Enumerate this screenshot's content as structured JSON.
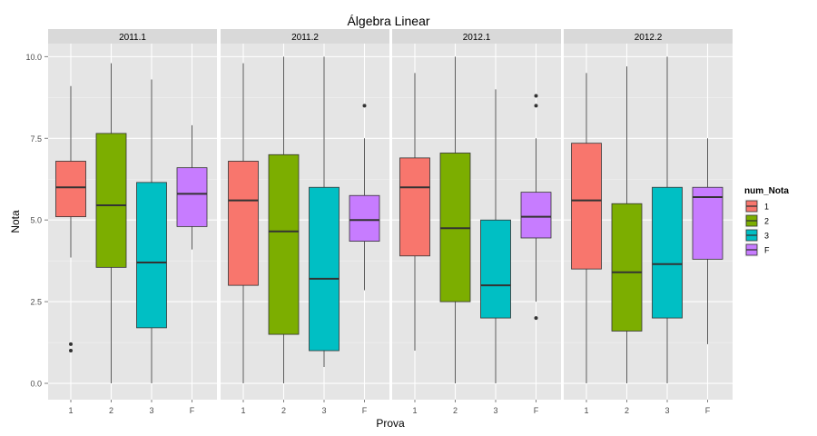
{
  "chart_data": {
    "type": "boxplot",
    "title": "Álgebra Linear",
    "xlabel": "Prova",
    "ylabel": "Nota",
    "ylim": [
      -0.5,
      10.4
    ],
    "yticks": [
      0.0,
      2.5,
      5.0,
      7.5,
      10.0
    ],
    "ytick_labels": [
      "0.0",
      "2.5",
      "5.0",
      "7.5",
      "10.0"
    ],
    "categories": [
      "1",
      "2",
      "3",
      "F"
    ],
    "grid": true,
    "legend": {
      "title": "num_Nota",
      "position": "right",
      "entries": [
        {
          "label": "1",
          "color": "#F8766D"
        },
        {
          "label": "2",
          "color": "#7CAE00"
        },
        {
          "label": "3",
          "color": "#00BFC4"
        },
        {
          "label": "F",
          "color": "#C77CFF"
        }
      ]
    },
    "panels": [
      {
        "label": "2011.1",
        "boxes": [
          {
            "category": "1",
            "whisker_low": 3.85,
            "q1": 5.1,
            "median": 6.0,
            "q3": 6.8,
            "whisker_high": 9.1,
            "outliers": [
              1.2,
              1.0
            ]
          },
          {
            "category": "2",
            "whisker_low": 0.0,
            "q1": 3.55,
            "median": 5.45,
            "q3": 7.65,
            "whisker_high": 9.8,
            "outliers": []
          },
          {
            "category": "3",
            "whisker_low": 0.0,
            "q1": 1.7,
            "median": 3.7,
            "q3": 6.15,
            "whisker_high": 9.3,
            "outliers": []
          },
          {
            "category": "F",
            "whisker_low": 4.1,
            "q1": 4.8,
            "median": 5.8,
            "q3": 6.6,
            "whisker_high": 7.9,
            "outliers": []
          }
        ]
      },
      {
        "label": "2011.2",
        "boxes": [
          {
            "category": "1",
            "whisker_low": 0.0,
            "q1": 3.0,
            "median": 5.6,
            "q3": 6.8,
            "whisker_high": 9.8,
            "outliers": []
          },
          {
            "category": "2",
            "whisker_low": 0.0,
            "q1": 1.5,
            "median": 4.65,
            "q3": 7.0,
            "whisker_high": 10.0,
            "outliers": []
          },
          {
            "category": "3",
            "whisker_low": 0.5,
            "q1": 1.0,
            "median": 3.2,
            "q3": 6.0,
            "whisker_high": 10.0,
            "outliers": []
          },
          {
            "category": "F",
            "whisker_low": 2.85,
            "q1": 4.35,
            "median": 5.0,
            "q3": 5.75,
            "whisker_high": 7.5,
            "outliers": [
              8.5
            ]
          }
        ]
      },
      {
        "label": "2012.1",
        "boxes": [
          {
            "category": "1",
            "whisker_low": 1.0,
            "q1": 3.9,
            "median": 6.0,
            "q3": 6.9,
            "whisker_high": 9.5,
            "outliers": []
          },
          {
            "category": "2",
            "whisker_low": 0.0,
            "q1": 2.5,
            "median": 4.75,
            "q3": 7.05,
            "whisker_high": 10.0,
            "outliers": []
          },
          {
            "category": "3",
            "whisker_low": 0.0,
            "q1": 2.0,
            "median": 3.0,
            "q3": 5.0,
            "whisker_high": 9.0,
            "outliers": []
          },
          {
            "category": "F",
            "whisker_low": 2.5,
            "q1": 4.45,
            "median": 5.1,
            "q3": 5.85,
            "whisker_high": 7.5,
            "outliers": [
              8.8,
              8.5,
              2.0
            ]
          }
        ]
      },
      {
        "label": "2012.2",
        "boxes": [
          {
            "category": "1",
            "whisker_low": 0.0,
            "q1": 3.5,
            "median": 5.6,
            "q3": 7.35,
            "whisker_high": 9.5,
            "outliers": []
          },
          {
            "category": "2",
            "whisker_low": 0.0,
            "q1": 1.6,
            "median": 3.4,
            "q3": 5.5,
            "whisker_high": 9.7,
            "outliers": []
          },
          {
            "category": "3",
            "whisker_low": 0.0,
            "q1": 2.0,
            "median": 3.65,
            "q3": 6.0,
            "whisker_high": 10.0,
            "outliers": []
          },
          {
            "category": "F",
            "whisker_low": 1.2,
            "q1": 3.8,
            "median": 5.7,
            "q3": 6.0,
            "whisker_high": 7.5,
            "outliers": []
          }
        ]
      }
    ]
  }
}
